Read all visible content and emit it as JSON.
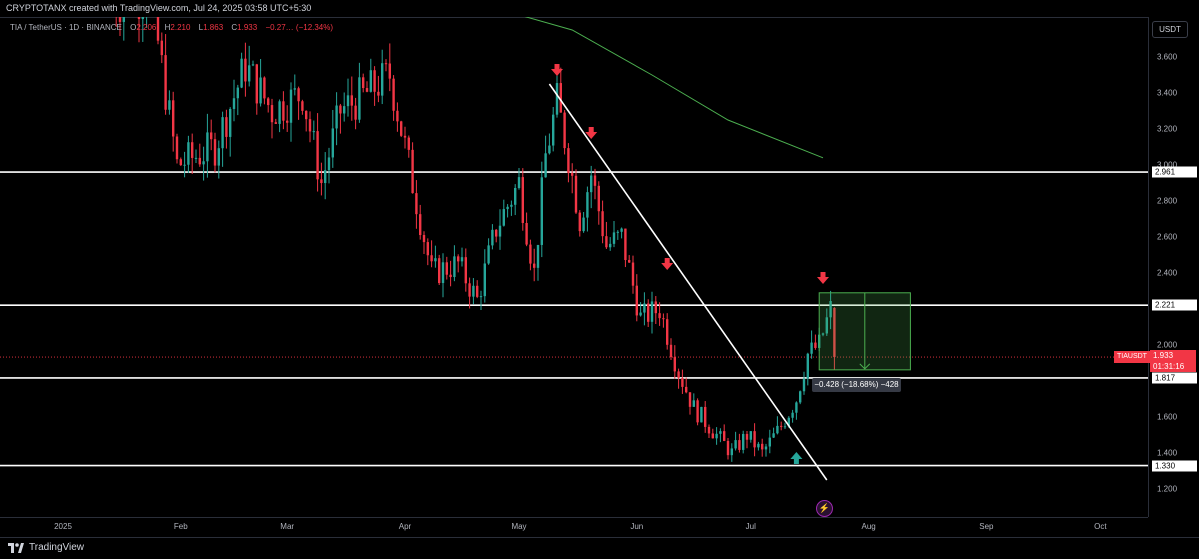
{
  "header": {
    "credit": "CRYPTOTANX created with TradingView.com, Jul 24, 2025 03:58 UTC+5:30"
  },
  "legend": {
    "symbol_line": "TIA / TetherUS · 1D · BINANCE",
    "o_label": "O",
    "o_value": "2.206",
    "h_label": "H",
    "h_value": "2.210",
    "l_label": "L",
    "l_value": "1.863",
    "c_label": "C",
    "c_value": "1.933",
    "change": "−0.27… (−12.34%)"
  },
  "price_axis": {
    "currency": "USDT",
    "ticks": [
      "3.600",
      "3.400",
      "3.200",
      "3.000",
      "2.800",
      "2.600",
      "2.400",
      "2.000",
      "1.600",
      "1.400",
      "1.200"
    ],
    "levels": [
      {
        "label": "2.961",
        "value": 2.961
      },
      {
        "label": "2.221",
        "value": 2.221
      },
      {
        "label": "1.817",
        "value": 1.817
      },
      {
        "label": "1.330",
        "value": 1.33
      }
    ],
    "last_price": "1.933",
    "countdown": "01:31:16",
    "symbol_tag": "TIAUSDT"
  },
  "time_axis": {
    "labels": [
      "2025",
      "Feb",
      "Mar",
      "Apr",
      "May",
      "Jun",
      "Jul",
      "Aug",
      "Sep",
      "Oct"
    ]
  },
  "measure": {
    "label": "−0.428 (−18.68%) −428"
  },
  "footer": {
    "brand": "TradingView"
  },
  "colors": {
    "up": "#26a69a",
    "down": "#f23645",
    "ma": "#4caf50",
    "background": "#000000"
  },
  "chart_data": {
    "type": "candlestick",
    "symbol": "TIAUSDT",
    "interval": "1D",
    "ylim": [
      1.15,
      3.85
    ],
    "horizontal_levels": [
      2.961,
      2.221,
      1.817,
      1.33
    ],
    "trendline": [
      {
        "date": "2025-05-09",
        "price": 3.45
      },
      {
        "date": "2025-07-21",
        "price": 1.25
      }
    ],
    "signals_down": [
      "2025-05-11",
      "2025-05-20",
      "2025-06-09",
      "2025-07-20"
    ],
    "signals_up": [
      "2025-07-13"
    ],
    "ma_points": [
      [
        "2025-04-25",
        3.87
      ],
      [
        "2025-05-15",
        3.75
      ],
      [
        "2025-06-05",
        3.5
      ],
      [
        "2025-06-25",
        3.25
      ],
      [
        "2025-07-20",
        3.04
      ]
    ],
    "measure": {
      "from": 2.29,
      "to": 1.862,
      "change": -0.428,
      "change_pct": -18.68
    },
    "last": {
      "date": "2025-07-23",
      "open": 2.206,
      "high": 2.21,
      "low": 1.863,
      "close": 1.933
    },
    "path": [
      [
        "2025-01-14",
        3.9
      ],
      [
        "2025-01-24",
        3.95
      ],
      [
        "2025-01-31",
        3.0
      ],
      [
        "2025-02-10",
        3.1
      ],
      [
        "2025-02-18",
        3.55
      ],
      [
        "2025-02-25",
        3.3
      ],
      [
        "2025-03-05",
        3.4
      ],
      [
        "2025-03-10",
        2.9
      ],
      [
        "2025-03-15",
        3.3
      ],
      [
        "2025-03-22",
        3.4
      ],
      [
        "2025-03-28",
        3.5
      ],
      [
        "2025-04-03",
        2.9
      ],
      [
        "2025-04-08",
        2.4
      ],
      [
        "2025-04-15",
        2.45
      ],
      [
        "2025-04-20",
        2.25
      ],
      [
        "2025-04-25",
        2.65
      ],
      [
        "2025-05-01",
        2.9
      ],
      [
        "2025-05-05",
        2.4
      ],
      [
        "2025-05-08",
        3.05
      ],
      [
        "2025-05-11",
        3.35
      ],
      [
        "2025-05-14",
        3.05
      ],
      [
        "2025-05-17",
        2.7
      ],
      [
        "2025-05-20",
        2.95
      ],
      [
        "2025-05-24",
        2.55
      ],
      [
        "2025-05-28",
        2.6
      ],
      [
        "2025-06-02",
        2.15
      ],
      [
        "2025-06-07",
        2.2
      ],
      [
        "2025-06-12",
        1.85
      ],
      [
        "2025-06-16",
        1.65
      ],
      [
        "2025-06-20",
        1.55
      ],
      [
        "2025-06-26",
        1.4
      ],
      [
        "2025-06-30",
        1.5
      ],
      [
        "2025-07-04",
        1.4
      ],
      [
        "2025-07-09",
        1.55
      ],
      [
        "2025-07-13",
        1.7
      ],
      [
        "2025-07-16",
        1.95
      ],
      [
        "2025-07-19",
        2.0
      ],
      [
        "2025-07-22",
        2.2
      ]
    ]
  }
}
